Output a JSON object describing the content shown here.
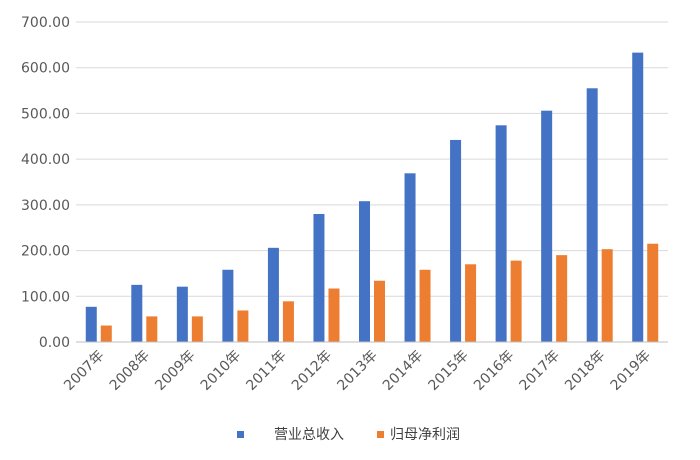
{
  "chart_data": {
    "type": "bar",
    "title": "",
    "xlabel": "",
    "ylabel": "",
    "ylim": [
      0,
      700
    ],
    "yticks": [
      "0.00",
      "100.00",
      "200.00",
      "300.00",
      "400.00",
      "500.00",
      "600.00",
      "700.00"
    ],
    "grid": true,
    "legend_position": "bottom",
    "categories": [
      "2007年",
      "2008年",
      "2009年",
      "2010年",
      "2011年",
      "2012年",
      "2013年",
      "2014年",
      "2015年",
      "2016年",
      "2017年",
      "2018年",
      "2019年"
    ],
    "series": [
      {
        "name": "营业总收入",
        "color": "#4472c4",
        "values": [
          77,
          125,
          121,
          158,
          206,
          280,
          308,
          369,
          442,
          474,
          506,
          555,
          633
        ]
      },
      {
        "name": "归母净利润",
        "color": "#ed7d31",
        "values": [
          36,
          56,
          56,
          69,
          89,
          117,
          134,
          158,
          170,
          178,
          190,
          203,
          215
        ]
      }
    ]
  }
}
